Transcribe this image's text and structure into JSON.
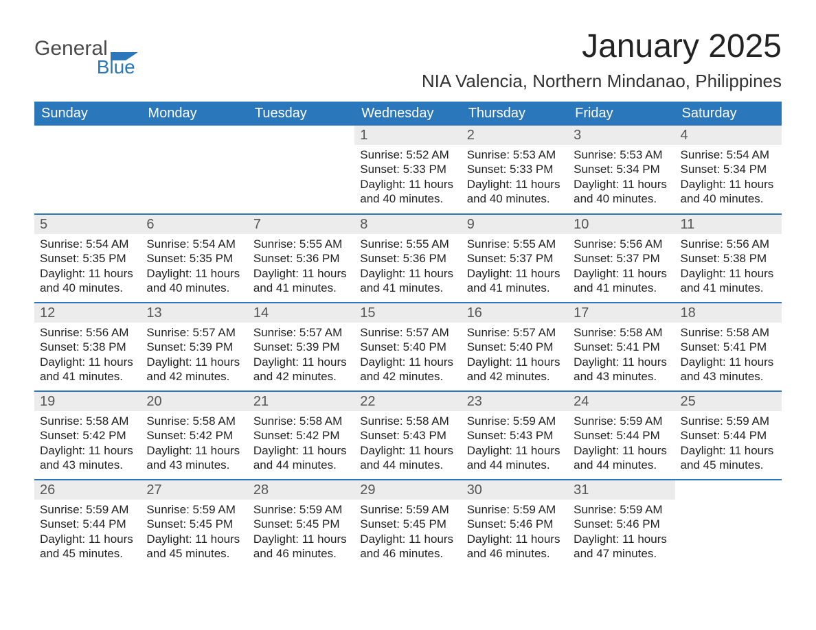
{
  "colors": {
    "accent": "#2a77bc",
    "header_bg": "#2a77bc",
    "row_border": "#2a77bc",
    "daynum_bg": "#ececec",
    "background": "#ffffff",
    "text": "#333333"
  },
  "logo": {
    "word1": "General",
    "word2": "Blue"
  },
  "title": "January 2025",
  "location": "NIA Valencia, Northern Mindanao, Philippines",
  "weekday_labels": [
    "Sunday",
    "Monday",
    "Tuesday",
    "Wednesday",
    "Thursday",
    "Friday",
    "Saturday"
  ],
  "labels": {
    "sunrise": "Sunrise",
    "sunset": "Sunset",
    "daylight": "Daylight"
  },
  "grid": {
    "rows": 5,
    "cols": 7,
    "leading_blanks": 3
  },
  "typography": {
    "title_fontsize": 48,
    "location_fontsize": 26,
    "weekday_fontsize": 20,
    "daynum_fontsize": 20,
    "body_fontsize": 17
  },
  "days": [
    {
      "n": 1,
      "sunrise": "5:52 AM",
      "sunset": "5:33 PM",
      "daylight": "11 hours and 40 minutes."
    },
    {
      "n": 2,
      "sunrise": "5:53 AM",
      "sunset": "5:33 PM",
      "daylight": "11 hours and 40 minutes."
    },
    {
      "n": 3,
      "sunrise": "5:53 AM",
      "sunset": "5:34 PM",
      "daylight": "11 hours and 40 minutes."
    },
    {
      "n": 4,
      "sunrise": "5:54 AM",
      "sunset": "5:34 PM",
      "daylight": "11 hours and 40 minutes."
    },
    {
      "n": 5,
      "sunrise": "5:54 AM",
      "sunset": "5:35 PM",
      "daylight": "11 hours and 40 minutes."
    },
    {
      "n": 6,
      "sunrise": "5:54 AM",
      "sunset": "5:35 PM",
      "daylight": "11 hours and 40 minutes."
    },
    {
      "n": 7,
      "sunrise": "5:55 AM",
      "sunset": "5:36 PM",
      "daylight": "11 hours and 41 minutes."
    },
    {
      "n": 8,
      "sunrise": "5:55 AM",
      "sunset": "5:36 PM",
      "daylight": "11 hours and 41 minutes."
    },
    {
      "n": 9,
      "sunrise": "5:55 AM",
      "sunset": "5:37 PM",
      "daylight": "11 hours and 41 minutes."
    },
    {
      "n": 10,
      "sunrise": "5:56 AM",
      "sunset": "5:37 PM",
      "daylight": "11 hours and 41 minutes."
    },
    {
      "n": 11,
      "sunrise": "5:56 AM",
      "sunset": "5:38 PM",
      "daylight": "11 hours and 41 minutes."
    },
    {
      "n": 12,
      "sunrise": "5:56 AM",
      "sunset": "5:38 PM",
      "daylight": "11 hours and 41 minutes."
    },
    {
      "n": 13,
      "sunrise": "5:57 AM",
      "sunset": "5:39 PM",
      "daylight": "11 hours and 42 minutes."
    },
    {
      "n": 14,
      "sunrise": "5:57 AM",
      "sunset": "5:39 PM",
      "daylight": "11 hours and 42 minutes."
    },
    {
      "n": 15,
      "sunrise": "5:57 AM",
      "sunset": "5:40 PM",
      "daylight": "11 hours and 42 minutes."
    },
    {
      "n": 16,
      "sunrise": "5:57 AM",
      "sunset": "5:40 PM",
      "daylight": "11 hours and 42 minutes."
    },
    {
      "n": 17,
      "sunrise": "5:58 AM",
      "sunset": "5:41 PM",
      "daylight": "11 hours and 43 minutes."
    },
    {
      "n": 18,
      "sunrise": "5:58 AM",
      "sunset": "5:41 PM",
      "daylight": "11 hours and 43 minutes."
    },
    {
      "n": 19,
      "sunrise": "5:58 AM",
      "sunset": "5:42 PM",
      "daylight": "11 hours and 43 minutes."
    },
    {
      "n": 20,
      "sunrise": "5:58 AM",
      "sunset": "5:42 PM",
      "daylight": "11 hours and 43 minutes."
    },
    {
      "n": 21,
      "sunrise": "5:58 AM",
      "sunset": "5:42 PM",
      "daylight": "11 hours and 44 minutes."
    },
    {
      "n": 22,
      "sunrise": "5:58 AM",
      "sunset": "5:43 PM",
      "daylight": "11 hours and 44 minutes."
    },
    {
      "n": 23,
      "sunrise": "5:59 AM",
      "sunset": "5:43 PM",
      "daylight": "11 hours and 44 minutes."
    },
    {
      "n": 24,
      "sunrise": "5:59 AM",
      "sunset": "5:44 PM",
      "daylight": "11 hours and 44 minutes."
    },
    {
      "n": 25,
      "sunrise": "5:59 AM",
      "sunset": "5:44 PM",
      "daylight": "11 hours and 45 minutes."
    },
    {
      "n": 26,
      "sunrise": "5:59 AM",
      "sunset": "5:44 PM",
      "daylight": "11 hours and 45 minutes."
    },
    {
      "n": 27,
      "sunrise": "5:59 AM",
      "sunset": "5:45 PM",
      "daylight": "11 hours and 45 minutes."
    },
    {
      "n": 28,
      "sunrise": "5:59 AM",
      "sunset": "5:45 PM",
      "daylight": "11 hours and 46 minutes."
    },
    {
      "n": 29,
      "sunrise": "5:59 AM",
      "sunset": "5:45 PM",
      "daylight": "11 hours and 46 minutes."
    },
    {
      "n": 30,
      "sunrise": "5:59 AM",
      "sunset": "5:46 PM",
      "daylight": "11 hours and 46 minutes."
    },
    {
      "n": 31,
      "sunrise": "5:59 AM",
      "sunset": "5:46 PM",
      "daylight": "11 hours and 47 minutes."
    }
  ]
}
